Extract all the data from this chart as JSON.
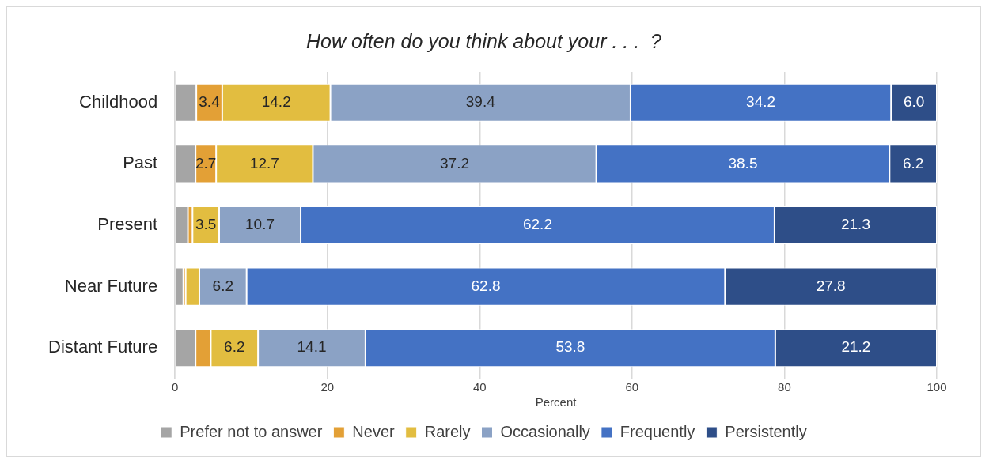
{
  "chart_data": {
    "type": "bar",
    "orientation": "horizontal",
    "stacked": true,
    "title": "How often do you think about your . . .  ?",
    "xlabel": "Percent",
    "categories": [
      "Childhood",
      "Past",
      "Present",
      "Near Future",
      "Distant Future"
    ],
    "series": [
      {
        "name": "Prefer not to answer",
        "color": "#a5a5a5",
        "values": [
          2.8,
          2.7,
          1.7,
          1.1,
          2.7
        ],
        "value_labels": [
          null,
          null,
          null,
          null,
          null
        ]
      },
      {
        "name": "Never",
        "color": "#e3a036",
        "values": [
          3.4,
          2.7,
          0.6,
          0.3,
          2.0
        ],
        "value_labels": [
          "3.4",
          "2.7",
          null,
          null,
          null
        ]
      },
      {
        "name": "Rarely",
        "color": "#e2bd40",
        "values": [
          14.2,
          12.7,
          3.5,
          1.8,
          6.2
        ],
        "value_labels": [
          "14.2",
          "12.7",
          "3.5",
          null,
          "6.2"
        ]
      },
      {
        "name": "Occasionally",
        "color": "#8ba2c5",
        "values": [
          39.4,
          37.2,
          10.7,
          6.2,
          14.1
        ],
        "value_labels": [
          "39.4",
          "37.2",
          "10.7",
          "6.2",
          "14.1"
        ]
      },
      {
        "name": "Frequently",
        "color": "#4472c4",
        "values": [
          34.2,
          38.5,
          62.2,
          62.8,
          53.8
        ],
        "value_labels": [
          "34.2",
          "38.5",
          "62.2",
          "62.8",
          "53.8"
        ]
      },
      {
        "name": "Persistently",
        "color": "#2e4e88",
        "values": [
          6.0,
          6.2,
          21.3,
          27.8,
          21.2
        ],
        "value_labels": [
          "6.0",
          "6.2",
          "21.3",
          "27.8",
          "21.2"
        ]
      }
    ],
    "xlim": [
      0,
      100
    ],
    "xticks": [
      0,
      20,
      40,
      60,
      80,
      100
    ],
    "grid": "x",
    "legend": "bottom"
  }
}
